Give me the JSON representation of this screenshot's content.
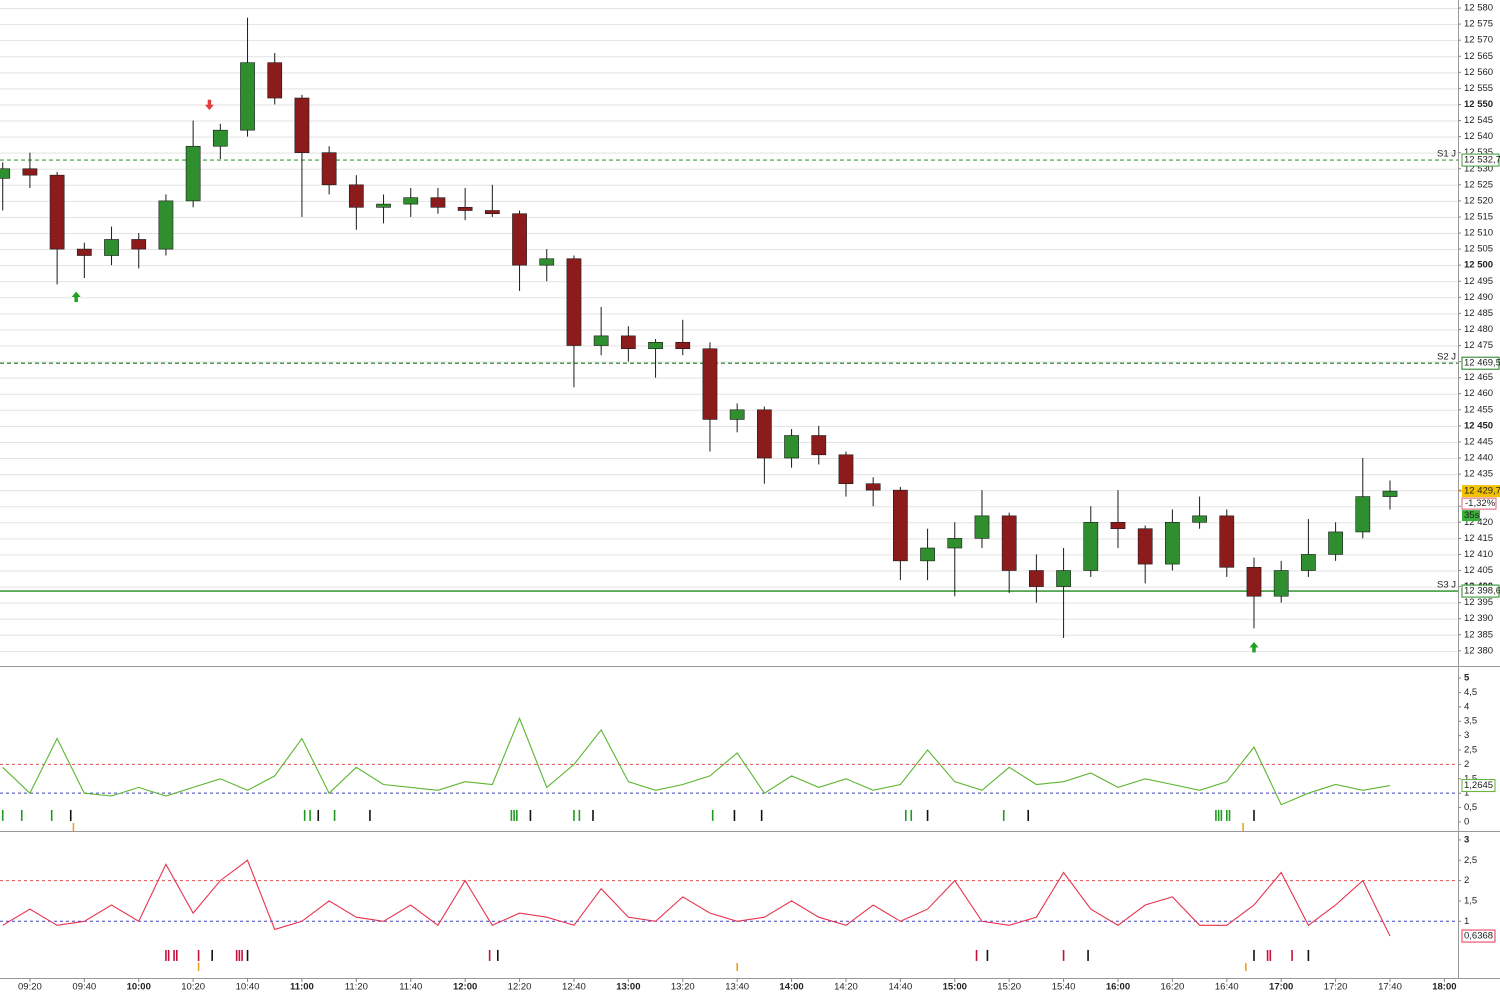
{
  "chart_data": [
    {
      "type": "candlestick",
      "x": [
        "09:10",
        "09:20",
        "09:30",
        "09:40",
        "09:50",
        "10:00",
        "10:10",
        "10:20",
        "10:30",
        "10:40",
        "10:50",
        "11:00",
        "11:10",
        "11:20",
        "11:30",
        "11:40",
        "11:50",
        "12:00",
        "12:10",
        "12:20",
        "12:30",
        "12:40",
        "12:50",
        "13:00",
        "13:10",
        "13:20",
        "13:30",
        "13:40",
        "13:50",
        "14:00",
        "14:10",
        "14:20",
        "14:30",
        "14:40",
        "14:50",
        "15:00",
        "15:10",
        "15:20",
        "15:30",
        "15:40",
        "15:50",
        "16:00",
        "16:10",
        "16:20",
        "16:30",
        "16:40",
        "16:50",
        "17:00",
        "17:10",
        "17:20",
        "17:30",
        "17:40"
      ],
      "open": [
        12527,
        12530,
        12528,
        12505,
        12503,
        12508,
        12505,
        12520,
        12537,
        12542,
        12563,
        12552,
        12535,
        12525,
        12518,
        12519,
        12521,
        12518,
        12517,
        12516,
        12500,
        12502,
        12475,
        12478,
        12474,
        12476,
        12474,
        12452,
        12455,
        12440,
        12447,
        12441,
        12432,
        12430,
        12408,
        12412,
        12415,
        12422,
        12405,
        12400,
        12405,
        12420,
        12418,
        12407,
        12420,
        12422,
        12406,
        12397,
        12405,
        12410,
        12417,
        12428
      ],
      "high": [
        12532,
        12535,
        12529,
        12507,
        12512,
        12510,
        12522,
        12545,
        12544,
        12577,
        12566,
        12553,
        12537,
        12528,
        12522,
        12524,
        12524,
        12524,
        12525,
        12517,
        12505,
        12503,
        12487,
        12481,
        12477,
        12483,
        12476,
        12457,
        12456,
        12449,
        12450,
        12442,
        12434,
        12431,
        12418,
        12420,
        12430,
        12423,
        12410,
        12412,
        12425,
        12430,
        12419,
        12424,
        12428,
        12424,
        12409,
        12408,
        12421,
        12420,
        12440,
        12433
      ],
      "low": [
        12517,
        12524,
        12494,
        12496,
        12500,
        12499,
        12503,
        12518,
        12533,
        12540,
        12550,
        12515,
        12522,
        12511,
        12513,
        12515,
        12516,
        12514,
        12515,
        12492,
        12495,
        12462,
        12472,
        12470,
        12465,
        12472,
        12442,
        12448,
        12432,
        12437,
        12438,
        12428,
        12425,
        12402,
        12402,
        12397,
        12412,
        12398,
        12395,
        12384,
        12403,
        12412,
        12401,
        12405,
        12418,
        12403,
        12387,
        12395,
        12403,
        12408,
        12415,
        12424
      ],
      "close": [
        12530,
        12528,
        12505,
        12503,
        12508,
        12505,
        12520,
        12537,
        12542,
        12563,
        12552,
        12535,
        12525,
        12518,
        12519,
        12521,
        12518,
        12517,
        12516,
        12500,
        12502,
        12475,
        12478,
        12474,
        12476,
        12474,
        12452,
        12455,
        12440,
        12447,
        12441,
        12432,
        12430,
        12408,
        12412,
        12415,
        12422,
        12405,
        12400,
        12405,
        12420,
        12418,
        12407,
        12420,
        12422,
        12406,
        12397,
        12405,
        12410,
        12417,
        12428,
        12429.7
      ],
      "up_color": "#2f8f2f",
      "down_color": "#8c1c1c",
      "wick_color": "#1a1a1a",
      "xlim": [
        "09:09",
        "18:05"
      ],
      "ylim": [
        12375.6,
        12582.5
      ],
      "grid": true,
      "yticks": [
        {
          "value": 12380,
          "label": "12 380"
        },
        {
          "value": 12385,
          "label": "12 385"
        },
        {
          "value": 12390,
          "label": "12 390"
        },
        {
          "value": 12395,
          "label": "12 395"
        },
        {
          "value": 12400,
          "label": "12 400"
        },
        {
          "value": 12405,
          "label": "12 405"
        },
        {
          "value": 12410,
          "label": "12 410"
        },
        {
          "value": 12415,
          "label": "12 415"
        },
        {
          "value": 12420,
          "label": "12 420"
        },
        {
          "value": 12425,
          "label": "12 425"
        },
        {
          "value": 12430,
          "label": "12 430"
        },
        {
          "value": 12435,
          "label": "12 435"
        },
        {
          "value": 12440,
          "label": "12 440"
        },
        {
          "value": 12445,
          "label": "12 445"
        },
        {
          "value": 12450,
          "label": "12 450"
        },
        {
          "value": 12455,
          "label": "12 455"
        },
        {
          "value": 12460,
          "label": "12 460"
        },
        {
          "value": 12465,
          "label": "12 465"
        },
        {
          "value": 12470,
          "label": "12 470"
        },
        {
          "value": 12475,
          "label": "12 475"
        },
        {
          "value": 12480,
          "label": "12 480"
        },
        {
          "value": 12485,
          "label": "12 485"
        },
        {
          "value": 12490,
          "label": "12 490"
        },
        {
          "value": 12495,
          "label": "12 495"
        },
        {
          "value": 12500,
          "label": "12 500"
        },
        {
          "value": 12505,
          "label": "12 505"
        },
        {
          "value": 12510,
          "label": "12 510"
        },
        {
          "value": 12515,
          "label": "12 515"
        },
        {
          "value": 12520,
          "label": "12 520"
        },
        {
          "value": 12525,
          "label": "12 525"
        },
        {
          "value": 12530,
          "label": "12 530"
        },
        {
          "value": 12535,
          "label": "12 535"
        },
        {
          "value": 12540,
          "label": "12 540"
        },
        {
          "value": 12545,
          "label": "12 545"
        },
        {
          "value": 12550,
          "label": "12 550"
        },
        {
          "value": 12555,
          "label": "12 555"
        },
        {
          "value": 12560,
          "label": "12 560"
        },
        {
          "value": 12565,
          "label": "12 565"
        },
        {
          "value": 12570,
          "label": "12 570"
        },
        {
          "value": 12575,
          "label": "12 575"
        },
        {
          "value": 12580,
          "label": "12 580"
        }
      ],
      "xticks": [
        "09:20",
        "09:40",
        "10:00",
        "10:20",
        "10:40",
        "11:00",
        "11:20",
        "11:40",
        "12:00",
        "12:20",
        "12:40",
        "13:00",
        "13:20",
        "13:40",
        "14:00",
        "14:20",
        "14:40",
        "15:00",
        "15:20",
        "15:40",
        "16:00",
        "16:20",
        "16:40",
        "17:00",
        "17:20",
        "17:40",
        "18:00"
      ],
      "levels": [
        {
          "name": "S1 J",
          "value": 12532.7,
          "value_label": "12 532,7",
          "color": "#3c9a3c",
          "style": "dashed"
        },
        {
          "name": "S2 J",
          "value": 12469.5,
          "value_label": "12 469,5",
          "color": "#1e7a1e",
          "style": "dashed"
        },
        {
          "name": "S3 J",
          "value": 12398.6,
          "value_label": "12 398,6",
          "color": "#1e8c1e",
          "style": "solid"
        }
      ],
      "last": {
        "value": 12429.7,
        "label": "12 429,7",
        "change": -1.32,
        "change_label": "-1,32%",
        "timer": "35s"
      },
      "signals": [
        {
          "x": "09:37",
          "y": 12490,
          "direction": "up"
        },
        {
          "x": "10:26",
          "y": 12550,
          "direction": "down"
        },
        {
          "x": "16:50",
          "y": 12381,
          "direction": "up"
        }
      ]
    },
    {
      "type": "line",
      "x": [
        "09:10",
        "09:20",
        "09:30",
        "09:40",
        "09:50",
        "10:00",
        "10:10",
        "10:20",
        "10:30",
        "10:40",
        "10:50",
        "11:00",
        "11:10",
        "11:20",
        "11:30",
        "11:40",
        "11:50",
        "12:00",
        "12:10",
        "12:20",
        "12:30",
        "12:40",
        "12:50",
        "13:00",
        "13:10",
        "13:20",
        "13:30",
        "13:40",
        "13:50",
        "14:00",
        "14:10",
        "14:20",
        "14:30",
        "14:40",
        "14:50",
        "15:00",
        "15:10",
        "15:20",
        "15:30",
        "15:40",
        "15:50",
        "16:00",
        "16:10",
        "16:20",
        "16:30",
        "16:40",
        "16:50",
        "17:00",
        "17:10",
        "17:20",
        "17:30",
        "17:40"
      ],
      "series": [
        {
          "color": "#5cb531",
          "values": [
            1.9,
            1.0,
            2.9,
            1.0,
            0.9,
            1.2,
            0.9,
            1.2,
            1.5,
            1.1,
            1.6,
            2.9,
            1.0,
            1.9,
            1.3,
            1.2,
            1.1,
            1.4,
            1.3,
            3.6,
            1.2,
            2.0,
            3.2,
            1.4,
            1.1,
            1.3,
            1.6,
            2.4,
            1.0,
            1.6,
            1.2,
            1.5,
            1.1,
            1.3,
            2.5,
            1.4,
            1.1,
            1.9,
            1.3,
            1.4,
            1.7,
            1.2,
            1.5,
            1.3,
            1.1,
            1.4,
            2.6,
            0.6,
            1.0,
            1.3,
            1.1,
            1.2645
          ],
          "last_label": "1,2645"
        }
      ],
      "xlim": [
        "09:09",
        "18:05"
      ],
      "ylim": [
        -0.28,
        5.35
      ],
      "yticks": [
        0,
        {
          "value": 0.5,
          "label": "0,5"
        },
        1,
        {
          "value": 1.5,
          "label": "1,5"
        },
        2,
        {
          "value": 2.5,
          "label": "2,5"
        },
        3,
        {
          "value": 3.5,
          "label": "3,5"
        },
        4,
        {
          "value": 4.5,
          "label": "4,5"
        },
        5
      ],
      "ref_lines": [
        {
          "value": 2,
          "color": "#e05050"
        },
        {
          "value": 1,
          "color": "#4040c0"
        }
      ],
      "markers": [
        {
          "x": "09:10",
          "color": "#1f9a1f"
        },
        {
          "x": "09:17",
          "color": "#1f9a1f"
        },
        {
          "x": "09:28",
          "color": "#1f9a1f"
        },
        {
          "x": "09:35",
          "color": "#111111"
        },
        {
          "x": "09:36",
          "color": "#f0a020"
        },
        {
          "x": "11:01",
          "color": "#1f9a1f"
        },
        {
          "x": "11:03",
          "color": "#1f9a1f"
        },
        {
          "x": "11:06",
          "color": "#111111"
        },
        {
          "x": "11:12",
          "color": "#1f9a1f"
        },
        {
          "x": "11:25",
          "color": "#111111"
        },
        {
          "x": "12:17",
          "color": "#1f9a1f"
        },
        {
          "x": "12:18",
          "color": "#1f9a1f"
        },
        {
          "x": "12:19",
          "color": "#1f9a1f"
        },
        {
          "x": "12:24",
          "color": "#111111"
        },
        {
          "x": "12:40",
          "color": "#1f9a1f"
        },
        {
          "x": "12:42",
          "color": "#1f9a1f"
        },
        {
          "x": "12:47",
          "color": "#111111"
        },
        {
          "x": "13:31",
          "color": "#1f9a1f"
        },
        {
          "x": "13:39",
          "color": "#111111"
        },
        {
          "x": "13:49",
          "color": "#111111"
        },
        {
          "x": "14:42",
          "color": "#1f9a1f"
        },
        {
          "x": "14:44",
          "color": "#1f9a1f"
        },
        {
          "x": "14:50",
          "color": "#111111"
        },
        {
          "x": "15:18",
          "color": "#1f9a1f"
        },
        {
          "x": "15:27",
          "color": "#111111"
        },
        {
          "x": "16:36",
          "color": "#1f9a1f"
        },
        {
          "x": "16:37",
          "color": "#1f9a1f"
        },
        {
          "x": "16:38",
          "color": "#1f9a1f"
        },
        {
          "x": "16:40",
          "color": "#1f9a1f"
        },
        {
          "x": "16:41",
          "color": "#1f9a1f"
        },
        {
          "x": "16:46",
          "color": "#f0a020"
        },
        {
          "x": "16:50",
          "color": "#111111"
        }
      ]
    },
    {
      "type": "line",
      "x": [
        "09:10",
        "09:20",
        "09:30",
        "09:40",
        "09:50",
        "10:00",
        "10:10",
        "10:20",
        "10:30",
        "10:40",
        "10:50",
        "11:00",
        "11:10",
        "11:20",
        "11:30",
        "11:40",
        "11:50",
        "12:00",
        "12:10",
        "12:20",
        "12:30",
        "12:40",
        "12:50",
        "13:00",
        "13:10",
        "13:20",
        "13:30",
        "13:40",
        "13:50",
        "14:00",
        "14:10",
        "14:20",
        "14:30",
        "14:40",
        "14:50",
        "15:00",
        "15:10",
        "15:20",
        "15:30",
        "15:40",
        "15:50",
        "16:00",
        "16:10",
        "16:20",
        "16:30",
        "16:40",
        "16:50",
        "17:00",
        "17:10",
        "17:20",
        "17:30",
        "17:40"
      ],
      "series": [
        {
          "color": "#e8334f",
          "values": [
            0.9,
            1.3,
            0.9,
            1.0,
            1.4,
            1.0,
            2.4,
            1.2,
            2.0,
            2.5,
            0.8,
            1.0,
            1.5,
            1.1,
            1.0,
            1.4,
            0.9,
            2.0,
            0.9,
            1.2,
            1.1,
            0.9,
            1.8,
            1.1,
            1.0,
            1.6,
            1.2,
            1.0,
            1.1,
            1.5,
            1.1,
            0.9,
            1.4,
            1.0,
            1.3,
            2.0,
            1.0,
            0.9,
            1.1,
            2.2,
            1.3,
            0.9,
            1.4,
            1.6,
            0.9,
            0.9,
            1.4,
            2.2,
            0.9,
            1.4,
            2.0,
            0.6368
          ],
          "last_label": "0,6368"
        }
      ],
      "xlim": [
        "09:09",
        "18:05"
      ],
      "ylim": [
        -0.37,
        3.17
      ],
      "yticks": [
        1,
        {
          "value": 1.5,
          "label": "1,5"
        },
        2,
        {
          "value": 2.5,
          "label": "2,5"
        },
        3
      ],
      "ref_lines": [
        {
          "value": 2,
          "color": "#e05050"
        },
        {
          "value": 1,
          "color": "#4040c0"
        }
      ],
      "markers": [
        {
          "x": "10:10",
          "color": "#c8103a"
        },
        {
          "x": "10:11",
          "color": "#c8103a"
        },
        {
          "x": "10:13",
          "color": "#c8103a"
        },
        {
          "x": "10:14",
          "color": "#c8103a"
        },
        {
          "x": "10:22",
          "color": "#c8103a"
        },
        {
          "x": "10:22",
          "color": "#f0a020"
        },
        {
          "x": "10:27",
          "color": "#111111"
        },
        {
          "x": "10:36",
          "color": "#c8103a"
        },
        {
          "x": "10:37",
          "color": "#c8103a"
        },
        {
          "x": "10:38",
          "color": "#c8103a"
        },
        {
          "x": "10:40",
          "color": "#111111"
        },
        {
          "x": "12:09",
          "color": "#c8103a"
        },
        {
          "x": "12:12",
          "color": "#111111"
        },
        {
          "x": "13:40",
          "color": "#f0a020"
        },
        {
          "x": "15:08",
          "color": "#c8103a"
        },
        {
          "x": "15:12",
          "color": "#111111"
        },
        {
          "x": "15:40",
          "color": "#c8103a"
        },
        {
          "x": "15:49",
          "color": "#111111"
        },
        {
          "x": "16:47",
          "color": "#f0a020"
        },
        {
          "x": "16:50",
          "color": "#111111"
        },
        {
          "x": "16:55",
          "color": "#c8103a"
        },
        {
          "x": "16:56",
          "color": "#c8103a"
        },
        {
          "x": "17:04",
          "color": "#c8103a"
        },
        {
          "x": "17:10",
          "color": "#111111"
        }
      ]
    }
  ]
}
